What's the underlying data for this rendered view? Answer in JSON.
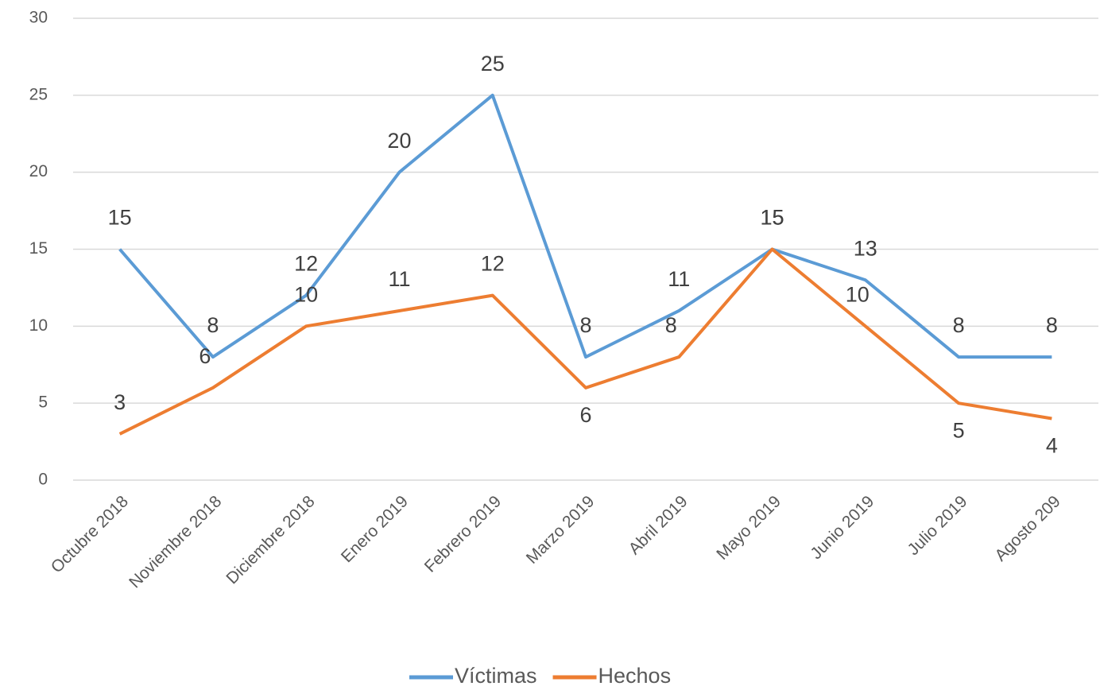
{
  "chart_data": {
    "type": "line",
    "categories": [
      "Octubre 2018",
      "Noviembre 2018",
      "Diciembre 2018",
      "Enero 2019",
      "Febrero 2019",
      "Marzo 2019",
      "Abril 2019",
      "Mayo 2019",
      "Junio 2019",
      "Julio 2019",
      "Agosto 209"
    ],
    "series": [
      {
        "name": "Víctimas",
        "color": "#5b9bd5",
        "values": [
          15,
          8,
          12,
          20,
          25,
          8,
          11,
          15,
          13,
          8,
          8
        ]
      },
      {
        "name": "Hechos",
        "color": "#ed7d31",
        "values": [
          3,
          6,
          10,
          11,
          12,
          6,
          8,
          15,
          10,
          5,
          4
        ]
      }
    ],
    "ylim": [
      0,
      30
    ],
    "yticks": [
      0,
      5,
      10,
      15,
      20,
      25,
      30
    ],
    "grid": true,
    "legend": "bottom"
  }
}
